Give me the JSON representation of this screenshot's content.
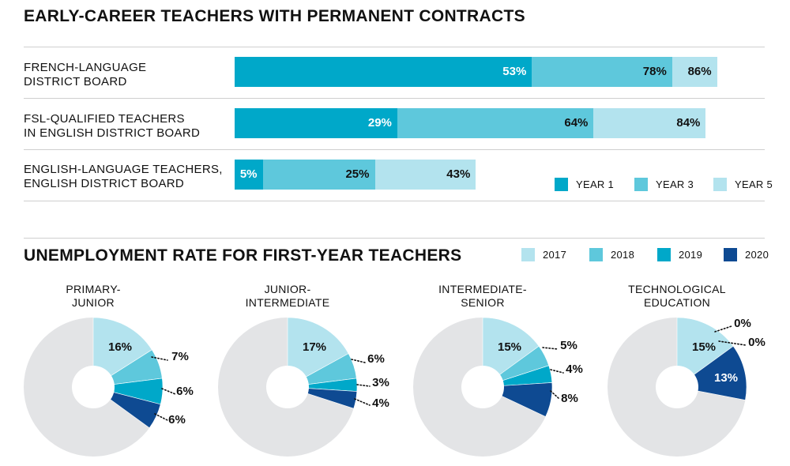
{
  "colors": {
    "year1": "#00a8c9",
    "year3": "#5ec8dc",
    "year5": "#b3e3ee",
    "c2017": "#b3e3ee",
    "c2018": "#5ec8dc",
    "c2019": "#00a8c9",
    "c2020": "#0e4a92",
    "remainder": "#e3e4e6"
  },
  "chart_data": [
    {
      "type": "bar",
      "title": "EARLY-CAREER TEACHERS WITH PERMANENT CONTRACTS",
      "categories": [
        "FRENCH-LANGUAGE\nDISTRICT BOARD",
        "FSL-QUALIFIED TEACHERS\nIN ENGLISH DISTRICT BOARD",
        "ENGLISH-LANGUAGE TEACHERS,\nENGLISH DISTRICT BOARD"
      ],
      "series": [
        {
          "name": "YEAR 1",
          "values": [
            53,
            29,
            5
          ],
          "labels": [
            "53%",
            "29%",
            "5%"
          ]
        },
        {
          "name": "YEAR 3",
          "values": [
            78,
            64,
            25
          ],
          "labels": [
            "78%",
            "64%",
            "25%"
          ]
        },
        {
          "name": "YEAR 5",
          "values": [
            86,
            84,
            43
          ],
          "labels": [
            "86%",
            "84%",
            "43%"
          ]
        }
      ],
      "xlim": [
        0,
        100
      ],
      "legend": "bottom-right"
    },
    {
      "type": "pie",
      "title": "UNEMPLOYMENT RATE FOR FIRST-YEAR TEACHERS",
      "legend": [
        "2017",
        "2018",
        "2019",
        "2020"
      ],
      "pies": [
        {
          "title": "PRIMARY-\nJUNIOR",
          "values": [
            16,
            7,
            6,
            6
          ],
          "labels": [
            "16%",
            "7%",
            "6%",
            "6%"
          ]
        },
        {
          "title": "JUNIOR-\nINTERMEDIATE",
          "values": [
            17,
            6,
            3,
            4
          ],
          "labels": [
            "17%",
            "6%",
            "3%",
            "4%"
          ]
        },
        {
          "title": "INTERMEDIATE-\nSENIOR",
          "values": [
            15,
            5,
            4,
            8
          ],
          "labels": [
            "15%",
            "5%",
            "4%",
            "8%"
          ]
        },
        {
          "title": "TECHNOLOGICAL\nEDUCATION",
          "values": [
            15,
            0,
            0,
            13
          ],
          "labels": [
            "15%",
            "0%",
            "0%",
            "13%"
          ]
        }
      ]
    }
  ]
}
